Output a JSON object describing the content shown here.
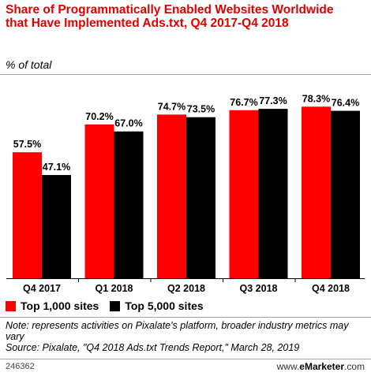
{
  "title": "Share of Programmatically Enabled Websites Worldwide that Have Implemented Ads.txt, Q4 2017-Q4 2018",
  "subtitle": "% of total",
  "colors": {
    "series1": "#ff0000",
    "series2": "#000000",
    "title": "#e00000"
  },
  "legend": [
    "Top 1,000 sites",
    "Top 5,000 sites"
  ],
  "note": "Note: represents activities on Pixalate's platform, broader industry metrics may vary",
  "source": "Source: Pixalate, \"Q4 2018 Ads.txt Trends Report,\" March 28, 2019",
  "footer_id": "246362",
  "brand_prefix": "www.",
  "brand_name": "eMarketer",
  "brand_suffix": ".com",
  "chart_data": {
    "type": "bar",
    "categories": [
      "Q4 2017",
      "Q1 2018",
      "Q2 2018",
      "Q3 2018",
      "Q4 2018"
    ],
    "series": [
      {
        "name": "Top 1,000 sites",
        "values": [
          57.5,
          70.2,
          74.7,
          76.7,
          78.3
        ],
        "labels": [
          "57.5%",
          "70.2%",
          "74.7%",
          "76.7%",
          "78.3%"
        ]
      },
      {
        "name": "Top 5,000 sites",
        "values": [
          47.1,
          67.0,
          73.5,
          77.3,
          76.4
        ],
        "labels": [
          "47.1%",
          "67.0%",
          "73.5%",
          "77.3%",
          "76.4%"
        ]
      }
    ],
    "title": "Share of Programmatically Enabled Websites Worldwide that Have Implemented Ads.txt, Q4 2017-Q4 2018",
    "ylabel": "% of total",
    "ylim": [
      0,
      100
    ],
    "legend_position": "bottom-left",
    "grid": false
  }
}
